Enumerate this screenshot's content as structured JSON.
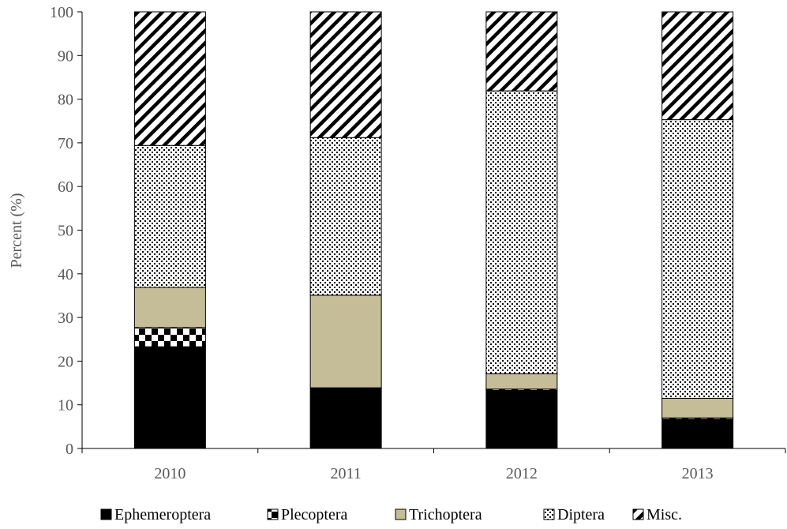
{
  "chart_data": {
    "type": "bar",
    "stacked": true,
    "categories": [
      "2010",
      "2011",
      "2012",
      "2013"
    ],
    "ylabel": "Percent (%)",
    "ylim": [
      0,
      100
    ],
    "yticks": [
      0,
      10,
      20,
      30,
      40,
      50,
      60,
      70,
      80,
      90,
      100
    ],
    "grid": false,
    "legend_position": "bottom",
    "series": [
      {
        "name": "Ephemeroptera",
        "values": [
          23.3,
          13.9,
          13.3,
          6.7
        ],
        "color": "#000000",
        "pattern": "solid"
      },
      {
        "name": "Plecoptera",
        "values": [
          4.4,
          0.0,
          0.3,
          0.3
        ],
        "color": "#000000",
        "pattern": "checker"
      },
      {
        "name": "Trichoptera",
        "values": [
          9.2,
          21.2,
          3.5,
          4.5
        ],
        "color": "#c4bd97",
        "pattern": "solid"
      },
      {
        "name": "Diptera",
        "values": [
          32.5,
          36.1,
          64.8,
          63.8
        ],
        "color": "#000000",
        "pattern": "dots"
      },
      {
        "name": "Misc.",
        "values": [
          30.6,
          28.8,
          18.1,
          24.7
        ],
        "color": "#000000",
        "pattern": "diagonal"
      }
    ]
  }
}
